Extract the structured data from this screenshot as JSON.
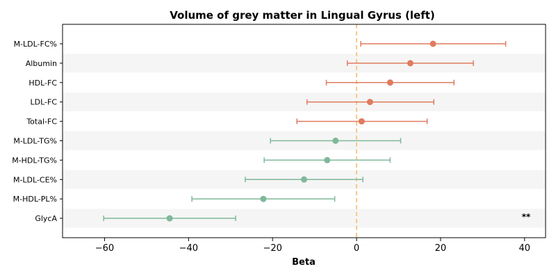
{
  "chart_data": {
    "type": "forest",
    "title": "Volume of grey matter in Lingual Gyrus (left)",
    "xlabel": "Beta",
    "ylabel": "",
    "xlim": [
      -70,
      45
    ],
    "xticks": [
      -60,
      -40,
      -20,
      0,
      20,
      40
    ],
    "xtick_labels": [
      "−60",
      "−40",
      "−20",
      "0",
      "20",
      "40"
    ],
    "reference_line": 0,
    "colors": {
      "positive": "#e07b5f",
      "negative": "#7fb89a",
      "reference_line": "#f5c98a",
      "band": "#f5f5f5"
    },
    "rows": [
      {
        "label": "M-LDL-FC%",
        "beta": 18.2,
        "ci_low": 1.0,
        "ci_high": 35.5,
        "annotation": ""
      },
      {
        "label": "Albumin",
        "beta": 12.8,
        "ci_low": -2.2,
        "ci_high": 27.8,
        "annotation": ""
      },
      {
        "label": "HDL-FC",
        "beta": 8.0,
        "ci_low": -7.2,
        "ci_high": 23.2,
        "annotation": ""
      },
      {
        "label": "LDL-FC",
        "beta": 3.2,
        "ci_low": -11.8,
        "ci_high": 18.4,
        "annotation": ""
      },
      {
        "label": "Total-FC",
        "beta": 1.2,
        "ci_low": -14.2,
        "ci_high": 16.8,
        "annotation": ""
      },
      {
        "label": "M-LDL-TG%",
        "beta": -5.0,
        "ci_low": -20.5,
        "ci_high": 10.5,
        "annotation": ""
      },
      {
        "label": "M-HDL-TG%",
        "beta": -7.0,
        "ci_low": -22.0,
        "ci_high": 8.0,
        "annotation": ""
      },
      {
        "label": "M-LDL-CE%",
        "beta": -12.5,
        "ci_low": -26.5,
        "ci_high": 1.5,
        "annotation": ""
      },
      {
        "label": "M-HDL-PL%",
        "beta": -22.2,
        "ci_low": -39.2,
        "ci_high": -5.2,
        "annotation": ""
      },
      {
        "label": "GlycA",
        "beta": -44.5,
        "ci_low": -60.2,
        "ci_high": -28.8,
        "annotation": "**"
      }
    ]
  }
}
